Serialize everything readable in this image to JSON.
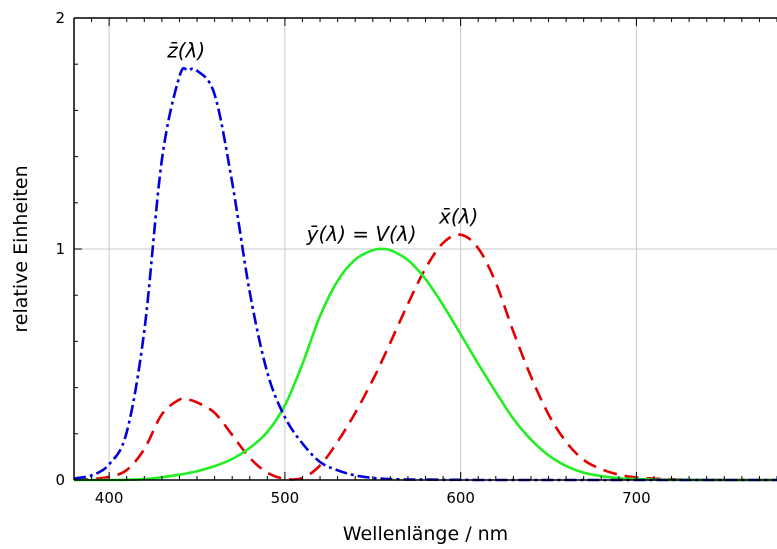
{
  "chart_data": {
    "type": "line",
    "title": "",
    "xlabel": "Wellenlänge / nm",
    "ylabel": "relative Einheiten",
    "xlim": [
      380,
      780
    ],
    "ylim": [
      0,
      2
    ],
    "xticks": [
      "400",
      "500",
      "600",
      "700"
    ],
    "yticks": [
      "0",
      "1",
      "2"
    ],
    "grid": true,
    "x": [
      380,
      390,
      400,
      410,
      420,
      430,
      440,
      445,
      450,
      460,
      470,
      480,
      490,
      500,
      510,
      520,
      530,
      540,
      550,
      555,
      560,
      570,
      580,
      590,
      600,
      610,
      620,
      630,
      640,
      650,
      660,
      670,
      680,
      690,
      700,
      710,
      720,
      730,
      740,
      750,
      760,
      770,
      780
    ],
    "series": [
      {
        "name": "x̄(λ)",
        "color": "#e30000",
        "dash": "dashed",
        "values": [
          0.001,
          0.004,
          0.014,
          0.043,
          0.134,
          0.284,
          0.348,
          0.348,
          0.336,
          0.291,
          0.195,
          0.096,
          0.032,
          0.005,
          0.009,
          0.063,
          0.166,
          0.29,
          0.433,
          0.512,
          0.595,
          0.762,
          0.916,
          1.026,
          1.062,
          1.003,
          0.854,
          0.642,
          0.448,
          0.284,
          0.165,
          0.087,
          0.047,
          0.023,
          0.011,
          0.006,
          0.003,
          0.001,
          0.001,
          0.0,
          0.0,
          0.0,
          0.0
        ]
      },
      {
        "name": "ȳ(λ) = V(λ)",
        "color": "#22ee22",
        "dash": "solid",
        "values": [
          0.0,
          0.0,
          0.0,
          0.001,
          0.004,
          0.012,
          0.023,
          0.03,
          0.038,
          0.06,
          0.091,
          0.139,
          0.208,
          0.323,
          0.503,
          0.71,
          0.862,
          0.954,
          0.995,
          1.0,
          0.995,
          0.952,
          0.87,
          0.757,
          0.631,
          0.503,
          0.381,
          0.265,
          0.175,
          0.107,
          0.061,
          0.032,
          0.017,
          0.008,
          0.004,
          0.002,
          0.001,
          0.001,
          0.0,
          0.0,
          0.0,
          0.0,
          0.0
        ]
      },
      {
        "name": "z̄(λ)",
        "color": "#0000dd",
        "dash": "dashdot",
        "values": [
          0.007,
          0.02,
          0.068,
          0.207,
          0.646,
          1.386,
          1.747,
          1.773,
          1.772,
          1.669,
          1.288,
          0.813,
          0.465,
          0.272,
          0.158,
          0.078,
          0.042,
          0.02,
          0.009,
          0.006,
          0.004,
          0.002,
          0.002,
          0.001,
          0.001,
          0.0,
          0.0,
          0.0,
          0.0,
          0.0,
          0.0,
          0.0,
          0.0,
          0.0,
          0.0,
          0.0,
          0.0,
          0.0,
          0.0,
          0.0,
          0.0,
          0.0,
          0.0
        ]
      }
    ],
    "annotations": {
      "z": "z̄(λ)",
      "y": "ȳ(λ) = V(λ)",
      "x": "x̄(λ)"
    }
  }
}
